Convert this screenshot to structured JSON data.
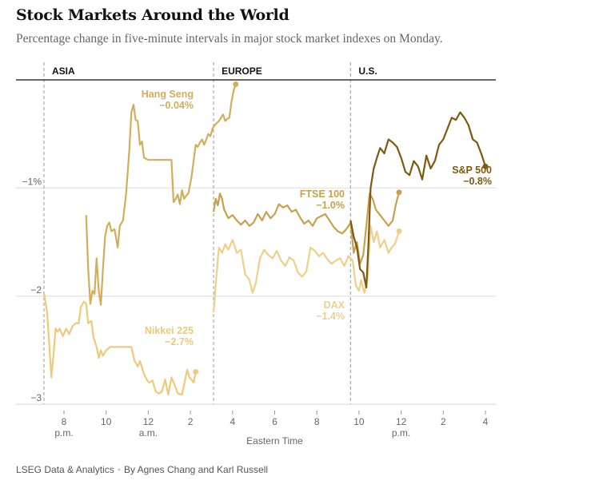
{
  "header": {
    "title": "Stock Markets Around the World",
    "subtitle": "Percentage change in five-minute intervals in major stock market indexes on Monday."
  },
  "footer": {
    "source": "LSEG Data & Analytics",
    "byline": "By Agnes Chang and Karl Russell"
  },
  "chart_data": {
    "type": "line",
    "title": "Stock Markets Around the World",
    "subtitle": "Percentage change in five-minute intervals in major stock market indexes on Monday.",
    "xlabel": "Eastern Time",
    "ylabel": "",
    "x_units": "hours after 8 p.m. (Sunday)",
    "xlim": [
      -1.0,
      20.3
    ],
    "ylim": [
      -3.05,
      0
    ],
    "grid": true,
    "regions": [
      {
        "name": "ASIA",
        "start": -0.95
      },
      {
        "name": "EUROPE",
        "start": 7.1
      },
      {
        "name": "U.S.",
        "start": 13.6
      }
    ],
    "y_ticks": [
      {
        "value": -1,
        "label": "−1%"
      },
      {
        "value": -2,
        "label": "−2"
      },
      {
        "value": -3,
        "label": "−3"
      }
    ],
    "x_ticks": [
      {
        "value": 0,
        "label": "8",
        "sub": "p.m."
      },
      {
        "value": 2,
        "label": "10",
        "sub": ""
      },
      {
        "value": 4,
        "label": "12",
        "sub": "a.m."
      },
      {
        "value": 6,
        "label": "2",
        "sub": ""
      },
      {
        "value": 8,
        "label": "4",
        "sub": ""
      },
      {
        "value": 10,
        "label": "6",
        "sub": ""
      },
      {
        "value": 12,
        "label": "8",
        "sub": ""
      },
      {
        "value": 14,
        "label": "10",
        "sub": ""
      },
      {
        "value": 16,
        "label": "12",
        "sub": "p.m."
      },
      {
        "value": 18,
        "label": "2",
        "sub": ""
      },
      {
        "value": 20,
        "label": "4",
        "sub": ""
      }
    ],
    "series": [
      {
        "name": "Nikkei 225",
        "final_label": "−2.7%",
        "color": "#f0c97a",
        "label_anchor": "left",
        "points": [
          [
            -0.95,
            -1.97
          ],
          [
            -0.8,
            -2.15
          ],
          [
            -0.7,
            -2.45
          ],
          [
            -0.6,
            -2.75
          ],
          [
            -0.5,
            -2.55
          ],
          [
            -0.4,
            -2.3
          ],
          [
            -0.3,
            -2.33
          ],
          [
            -0.2,
            -2.3
          ],
          [
            -0.05,
            -2.37
          ],
          [
            0.1,
            -2.3
          ],
          [
            0.25,
            -2.35
          ],
          [
            0.4,
            -2.28
          ],
          [
            0.55,
            -2.25
          ],
          [
            0.7,
            -2.25
          ],
          [
            0.8,
            -2.1
          ],
          [
            0.95,
            -2.05
          ],
          [
            1.05,
            -2.07
          ],
          [
            1.15,
            -2.25
          ],
          [
            1.3,
            -2.23
          ],
          [
            1.4,
            -2.38
          ],
          [
            1.55,
            -2.47
          ],
          [
            1.65,
            -2.57
          ],
          [
            1.75,
            -2.5
          ],
          [
            1.85,
            -2.55
          ],
          [
            2.0,
            -2.5
          ],
          [
            2.2,
            -2.47
          ],
          [
            3.2,
            -2.47
          ],
          [
            3.35,
            -2.6
          ],
          [
            3.5,
            -2.65
          ],
          [
            3.6,
            -2.6
          ],
          [
            3.8,
            -2.72
          ],
          [
            3.95,
            -2.78
          ],
          [
            4.05,
            -2.8
          ],
          [
            4.2,
            -2.78
          ],
          [
            4.35,
            -2.88
          ],
          [
            4.5,
            -2.9
          ],
          [
            4.65,
            -2.88
          ],
          [
            4.8,
            -2.77
          ],
          [
            4.95,
            -2.91
          ],
          [
            5.1,
            -2.75
          ],
          [
            5.25,
            -2.82
          ],
          [
            5.4,
            -2.9
          ],
          [
            5.6,
            -2.91
          ],
          [
            5.75,
            -2.77
          ],
          [
            5.85,
            -2.68
          ],
          [
            5.95,
            -2.75
          ],
          [
            6.05,
            -2.77
          ],
          [
            6.15,
            -2.8
          ],
          [
            6.25,
            -2.7
          ]
        ]
      },
      {
        "name": "Hang Seng",
        "final_label": "−0.04%",
        "color": "#d4ad5a",
        "label_anchor": "left",
        "points": [
          [
            1.05,
            -1.25
          ],
          [
            1.15,
            -1.75
          ],
          [
            1.25,
            -2.07
          ],
          [
            1.35,
            -1.95
          ],
          [
            1.45,
            -1.98
          ],
          [
            1.55,
            -1.65
          ],
          [
            1.65,
            -1.95
          ],
          [
            1.75,
            -2.08
          ],
          [
            1.85,
            -1.75
          ],
          [
            1.95,
            -1.45
          ],
          [
            2.05,
            -1.35
          ],
          [
            2.15,
            -1.32
          ],
          [
            2.25,
            -1.4
          ],
          [
            2.4,
            -1.38
          ],
          [
            2.55,
            -1.55
          ],
          [
            2.65,
            -1.35
          ],
          [
            2.8,
            -1.3
          ],
          [
            2.95,
            -1.05
          ],
          [
            3.1,
            -0.65
          ],
          [
            3.2,
            -0.3
          ],
          [
            3.3,
            -0.23
          ],
          [
            3.4,
            -0.37
          ],
          [
            3.5,
            -0.38
          ],
          [
            3.6,
            -0.6
          ],
          [
            3.7,
            -0.57
          ],
          [
            3.8,
            -0.72
          ],
          [
            4.0,
            -0.74
          ],
          [
            5.1,
            -0.74
          ],
          [
            5.2,
            -1.13
          ],
          [
            5.3,
            -1.1
          ],
          [
            5.4,
            -1.06
          ],
          [
            5.5,
            -1.15
          ],
          [
            5.6,
            -1.02
          ],
          [
            5.7,
            -1.1
          ],
          [
            5.8,
            -1.07
          ],
          [
            5.9,
            -1.05
          ],
          [
            6.05,
            -0.9
          ],
          [
            6.15,
            -0.75
          ],
          [
            6.25,
            -0.6
          ],
          [
            6.35,
            -0.62
          ],
          [
            6.45,
            -0.58
          ],
          [
            6.55,
            -0.55
          ],
          [
            6.65,
            -0.6
          ],
          [
            6.75,
            -0.55
          ],
          [
            6.85,
            -0.5
          ],
          [
            6.95,
            -0.52
          ],
          [
            7.05,
            -0.45
          ],
          [
            7.15,
            -0.42
          ],
          [
            7.25,
            -0.4
          ],
          [
            7.35,
            -0.38
          ],
          [
            7.45,
            -0.35
          ],
          [
            7.55,
            -0.32
          ],
          [
            7.65,
            -0.38
          ],
          [
            7.75,
            -0.36
          ],
          [
            7.85,
            -0.35
          ],
          [
            7.95,
            -0.2
          ],
          [
            8.05,
            -0.1
          ],
          [
            8.15,
            -0.04
          ]
        ]
      },
      {
        "name": "FTSE 100",
        "final_label": "−1.0%",
        "color": "#c9a04c",
        "label_anchor": "right",
        "points": [
          [
            7.1,
            -1.22
          ],
          [
            7.2,
            -1.1
          ],
          [
            7.3,
            -1.16
          ],
          [
            7.4,
            -1.05
          ],
          [
            7.5,
            -1.1
          ],
          [
            7.6,
            -1.2
          ],
          [
            7.8,
            -1.28
          ],
          [
            8.0,
            -1.25
          ],
          [
            8.2,
            -1.3
          ],
          [
            8.4,
            -1.34
          ],
          [
            8.6,
            -1.3
          ],
          [
            8.8,
            -1.35
          ],
          [
            9.0,
            -1.32
          ],
          [
            9.2,
            -1.24
          ],
          [
            9.4,
            -1.3
          ],
          [
            9.6,
            -1.22
          ],
          [
            9.8,
            -1.28
          ],
          [
            10.0,
            -1.24
          ],
          [
            10.2,
            -1.15
          ],
          [
            10.4,
            -1.18
          ],
          [
            10.6,
            -1.16
          ],
          [
            10.8,
            -1.22
          ],
          [
            11.0,
            -1.2
          ],
          [
            11.2,
            -1.27
          ],
          [
            11.4,
            -1.33
          ],
          [
            11.6,
            -1.3
          ],
          [
            11.8,
            -1.35
          ],
          [
            12.0,
            -1.28
          ],
          [
            12.2,
            -1.26
          ],
          [
            12.4,
            -1.24
          ],
          [
            12.6,
            -1.3
          ],
          [
            12.8,
            -1.36
          ],
          [
            13.0,
            -1.4
          ],
          [
            13.2,
            -1.42
          ],
          [
            13.4,
            -1.38
          ],
          [
            13.6,
            -1.32
          ],
          [
            13.75,
            -1.6
          ],
          [
            13.9,
            -1.5
          ],
          [
            14.05,
            -1.7
          ],
          [
            14.2,
            -1.62
          ],
          [
            14.35,
            -1.35
          ],
          [
            14.5,
            -1.05
          ],
          [
            14.65,
            -1.1
          ],
          [
            14.8,
            -1.2
          ],
          [
            15.0,
            -1.25
          ],
          [
            15.2,
            -1.3
          ],
          [
            15.4,
            -1.35
          ],
          [
            15.6,
            -1.3
          ],
          [
            15.75,
            -1.15
          ],
          [
            15.9,
            -1.04
          ]
        ]
      },
      {
        "name": "DAX",
        "final_label": "−1.4%",
        "color": "#f0cf8a",
        "label_anchor": "right",
        "points": [
          [
            7.1,
            -2.15
          ],
          [
            7.2,
            -1.9
          ],
          [
            7.35,
            -1.55
          ],
          [
            7.5,
            -1.6
          ],
          [
            7.65,
            -1.52
          ],
          [
            7.8,
            -1.57
          ],
          [
            8.0,
            -1.48
          ],
          [
            8.2,
            -1.6
          ],
          [
            8.4,
            -1.57
          ],
          [
            8.6,
            -1.8
          ],
          [
            8.8,
            -1.85
          ],
          [
            8.95,
            -1.97
          ],
          [
            9.1,
            -1.88
          ],
          [
            9.3,
            -1.65
          ],
          [
            9.5,
            -1.57
          ],
          [
            9.7,
            -1.62
          ],
          [
            9.9,
            -1.65
          ],
          [
            10.1,
            -1.58
          ],
          [
            10.3,
            -1.67
          ],
          [
            10.5,
            -1.72
          ],
          [
            10.7,
            -1.64
          ],
          [
            10.9,
            -1.67
          ],
          [
            11.1,
            -1.78
          ],
          [
            11.3,
            -1.82
          ],
          [
            11.5,
            -1.77
          ],
          [
            11.7,
            -1.55
          ],
          [
            11.9,
            -1.58
          ],
          [
            12.1,
            -1.63
          ],
          [
            12.3,
            -1.6
          ],
          [
            12.5,
            -1.66
          ],
          [
            12.7,
            -1.7
          ],
          [
            12.9,
            -1.67
          ],
          [
            13.1,
            -1.65
          ],
          [
            13.3,
            -1.72
          ],
          [
            13.5,
            -1.63
          ],
          [
            13.7,
            -1.67
          ],
          [
            13.85,
            -1.9
          ],
          [
            14.0,
            -1.95
          ],
          [
            14.1,
            -1.85
          ],
          [
            14.25,
            -1.97
          ],
          [
            14.4,
            -1.85
          ],
          [
            14.55,
            -1.35
          ],
          [
            14.7,
            -1.5
          ],
          [
            14.85,
            -1.4
          ],
          [
            15.0,
            -1.55
          ],
          [
            15.2,
            -1.48
          ],
          [
            15.4,
            -1.6
          ],
          [
            15.55,
            -1.55
          ],
          [
            15.7,
            -1.52
          ],
          [
            15.9,
            -1.4
          ]
        ]
      },
      {
        "name": "S&P 500",
        "final_label": "−0.8%",
        "color": "#7d5a10",
        "label_anchor": "right",
        "points": [
          [
            13.6,
            -1.3
          ],
          [
            13.75,
            -1.45
          ],
          [
            13.9,
            -1.55
          ],
          [
            14.05,
            -1.75
          ],
          [
            14.2,
            -1.78
          ],
          [
            14.35,
            -1.92
          ],
          [
            14.45,
            -1.5
          ],
          [
            14.55,
            -1.0
          ],
          [
            14.7,
            -0.82
          ],
          [
            14.85,
            -0.72
          ],
          [
            15.0,
            -0.63
          ],
          [
            15.2,
            -0.68
          ],
          [
            15.4,
            -0.55
          ],
          [
            15.6,
            -0.58
          ],
          [
            15.8,
            -0.62
          ],
          [
            16.0,
            -0.72
          ],
          [
            16.2,
            -0.85
          ],
          [
            16.4,
            -0.88
          ],
          [
            16.6,
            -0.75
          ],
          [
            16.8,
            -0.8
          ],
          [
            17.0,
            -0.92
          ],
          [
            17.2,
            -0.7
          ],
          [
            17.4,
            -0.82
          ],
          [
            17.6,
            -0.75
          ],
          [
            17.8,
            -0.6
          ],
          [
            18.0,
            -0.55
          ],
          [
            18.2,
            -0.45
          ],
          [
            18.4,
            -0.35
          ],
          [
            18.6,
            -0.37
          ],
          [
            18.8,
            -0.3
          ],
          [
            19.0,
            -0.35
          ],
          [
            19.2,
            -0.42
          ],
          [
            19.4,
            -0.55
          ],
          [
            19.6,
            -0.58
          ],
          [
            19.8,
            -0.68
          ],
          [
            20.0,
            -0.8
          ]
        ]
      }
    ]
  }
}
